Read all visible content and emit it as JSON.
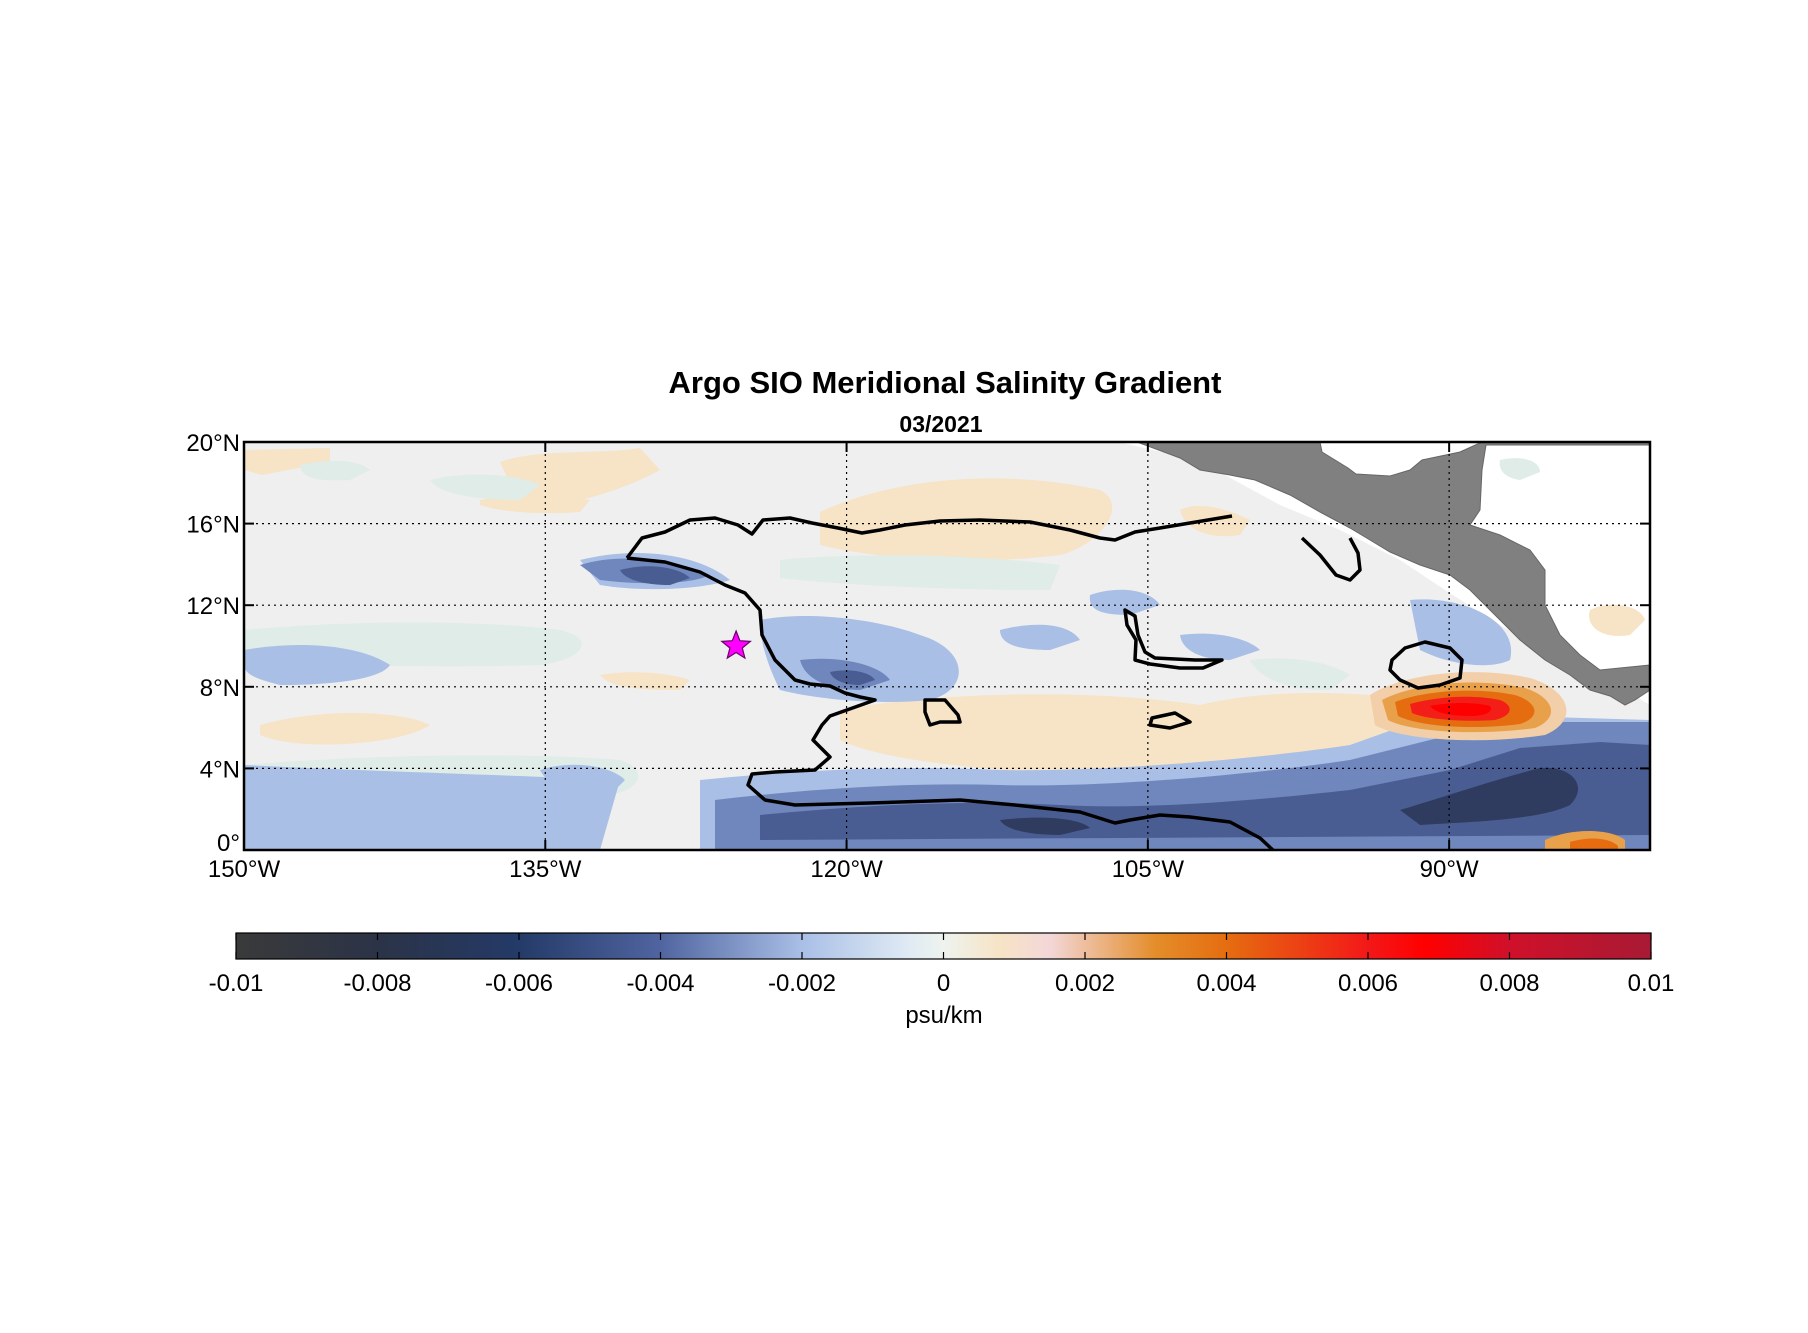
{
  "title": "Argo SIO Meridional Salinity Gradient",
  "subtitle": "03/2021",
  "map": {
    "lon_range": [
      -150,
      -80
    ],
    "lat_range": [
      0,
      20
    ],
    "lon_ticks": [
      {
        "value": -150,
        "label": "150°W"
      },
      {
        "value": -135,
        "label": "135°W"
      },
      {
        "value": -120,
        "label": "120°W"
      },
      {
        "value": -105,
        "label": "105°W"
      },
      {
        "value": -90,
        "label": "90°W"
      }
    ],
    "lat_ticks": [
      {
        "value": 0,
        "label": "0°"
      },
      {
        "value": 4,
        "label": "4°N"
      },
      {
        "value": 8,
        "label": "8°N"
      },
      {
        "value": 12,
        "label": "12°N"
      },
      {
        "value": 16,
        "label": "16°N"
      },
      {
        "value": 20,
        "label": "20°N"
      }
    ],
    "grid_lines": "dotted",
    "land_color": "#808080",
    "marker": {
      "shape": "star",
      "lon": -125.5,
      "lat": 10,
      "color": "#ff00ff"
    }
  },
  "colorbar": {
    "min": -0.01,
    "max": 0.01,
    "unit_label": "psu/km",
    "tick_labels": [
      {
        "value": -0.01,
        "label": "-0.01"
      },
      {
        "value": -0.008,
        "label": "-0.008"
      },
      {
        "value": -0.006,
        "label": "-0.006"
      },
      {
        "value": -0.004,
        "label": "-0.004"
      },
      {
        "value": -0.002,
        "label": "-0.002"
      },
      {
        "value": 0,
        "label": "0"
      },
      {
        "value": 0.002,
        "label": "0.002"
      },
      {
        "value": 0.004,
        "label": "0.004"
      },
      {
        "value": 0.006,
        "label": "0.006"
      },
      {
        "value": 0.008,
        "label": "0.008"
      },
      {
        "value": 0.01,
        "label": "0.01"
      }
    ],
    "stops": [
      {
        "value": -0.01,
        "color": "#3a3a3a"
      },
      {
        "value": -0.008,
        "color": "#2b3347"
      },
      {
        "value": -0.006,
        "color": "#243a68"
      },
      {
        "value": -0.004,
        "color": "#5065a0"
      },
      {
        "value": -0.002,
        "color": "#a9bfe6"
      },
      {
        "value": -0.0005,
        "color": "#dfeaf4"
      },
      {
        "value": 0,
        "color": "#eef3ee"
      },
      {
        "value": 0.0008,
        "color": "#f7e3c6"
      },
      {
        "value": 0.0015,
        "color": "#f3d7d8"
      },
      {
        "value": 0.003,
        "color": "#e48d2a"
      },
      {
        "value": 0.004,
        "color": "#e56d10"
      },
      {
        "value": 0.006,
        "color": "#f31818"
      },
      {
        "value": 0.0068,
        "color": "#ff0000"
      },
      {
        "value": 0.008,
        "color": "#d0102a"
      },
      {
        "value": 0.01,
        "color": "#a81a34"
      }
    ]
  }
}
